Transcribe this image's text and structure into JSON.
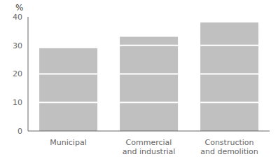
{
  "chart_data": {
    "type": "bar",
    "categories": [
      "Municipal",
      "Commercial\nand industrial",
      "Construction\nand demolition"
    ],
    "values": [
      29,
      33,
      38
    ],
    "color": "#c0c0c0",
    "ylabel": "%",
    "ylim": [
      0,
      40
    ],
    "yticks": [
      0,
      10,
      20,
      30,
      40
    ],
    "segment_breaks": [
      10,
      20,
      30
    ]
  }
}
